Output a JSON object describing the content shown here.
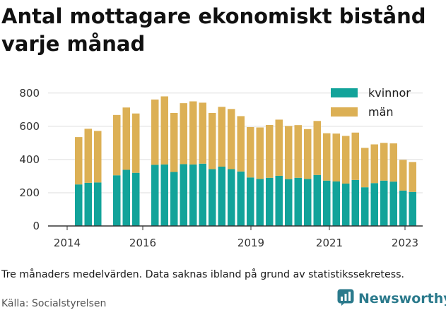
{
  "title": "Antal mottagare ekonomiskt bistånd varje månad",
  "note": "Tre månaders medelvärden. Data saknas ibland på grund av statistikssekretess.",
  "source": "Källa: Socialstyrelsen",
  "brand": {
    "name": "Newsworthy",
    "icon": "newsworthy-logo-icon"
  },
  "colors": {
    "kvinnor": "#12a39a",
    "man": "#dcb055",
    "axis": "#333333",
    "grid": "#dddddd"
  },
  "chart_data": {
    "type": "bar",
    "stacked": true,
    "x_ticks": [
      "2014",
      "2016",
      "2019",
      "2021",
      "2023"
    ],
    "y_ticks": [
      "0",
      "200",
      "400",
      "600",
      "800"
    ],
    "ylim": [
      0,
      850
    ],
    "legend_position": "top-right",
    "series": [
      {
        "name": "kvinnor",
        "values": [
          250,
          260,
          262,
          305,
          338,
          320,
          368,
          370,
          325,
          372,
          370,
          375,
          342,
          357,
          342,
          328,
          292,
          283,
          290,
          302,
          282,
          290,
          283,
          307,
          273,
          268,
          255,
          277,
          233,
          258,
          273,
          267,
          213,
          205
        ]
      },
      {
        "name": "män",
        "values": [
          285,
          325,
          310,
          363,
          375,
          357,
          393,
          410,
          355,
          367,
          380,
          367,
          338,
          360,
          362,
          333,
          303,
          310,
          318,
          338,
          320,
          317,
          300,
          325,
          285,
          288,
          287,
          285,
          237,
          233,
          227,
          230,
          185,
          180
        ]
      }
    ]
  }
}
